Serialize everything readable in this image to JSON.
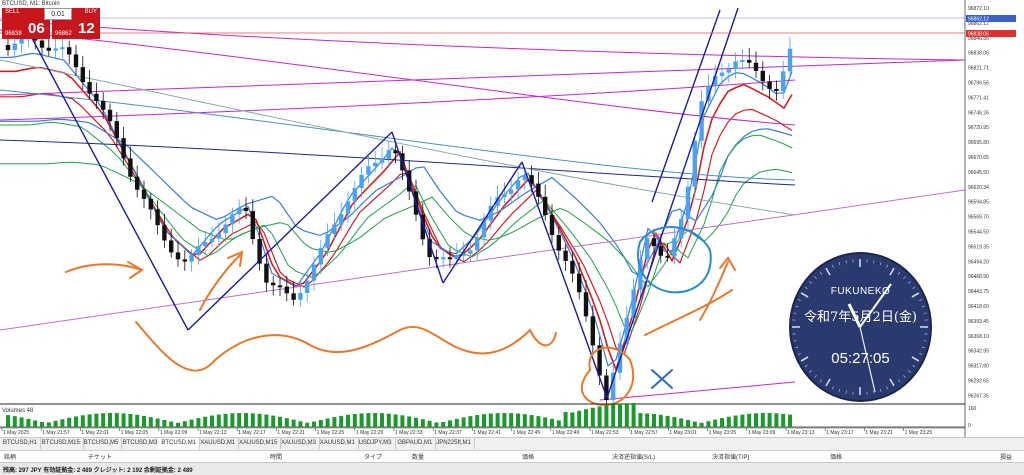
{
  "chart": {
    "title": "BTCUSD, M1: Bitcoin",
    "volume_label": "Volumes 48",
    "price_labels": [
      "96872.10",
      "96862.12",
      "96846.36",
      "96838.06",
      "96821.71",
      "96796.56",
      "96771.41",
      "96746.26",
      "96720.95",
      "96695.80",
      "96670.65",
      "96645.50",
      "96620.34",
      "96594.85",
      "96569.70",
      "96544.50",
      "96519.35",
      "96494.20",
      "96468.90",
      "96443.75",
      "96418.60",
      "96393.45",
      "96368.10",
      "96342.95",
      "96317.80",
      "96292.65",
      "96267.35"
    ],
    "volume_scale": [
      "160",
      "0"
    ],
    "time_labels": [
      "1 May 2025",
      "1 May 21:57",
      "1 May 22:01",
      "1 May 22:05",
      "1 May 22:09",
      "1 May 22:13",
      "1 May 22:17",
      "1 May 22:21",
      "1 May 22:25",
      "1 May 22:29",
      "1 May 22:33",
      "1 May 22:37",
      "1 May 22:41",
      "1 May 22:45",
      "1 May 22:49",
      "1 May 22:53",
      "1 May 22:57",
      "1 May 23:01",
      "1 May 23:05",
      "1 May 23:09",
      "1 May 23:13",
      "1 May 23:17",
      "1 May 23:21",
      "1 May 23:25"
    ],
    "colors": {
      "bull": "#4aa3f0",
      "bear": "#111111",
      "ma_red": "#d41e1e",
      "ma_blue": "#3a7be0",
      "ma_green": "#21a04a",
      "ma_magenta": "#c02ac8",
      "trend": "#1a1aa8",
      "annotation": "#e8782a",
      "volume": "#1a9a2a"
    }
  },
  "trade_panel": {
    "sell_label": "SELL",
    "buy_label": "BUY",
    "lot": "0.01",
    "sell_price": "96838",
    "sell_big": "06",
    "buy_price": "96862",
    "buy_big": "12"
  },
  "clock": {
    "brand": "FUKUNEKO",
    "date": "令和7年5月2日(金)",
    "time": "05:27:05"
  },
  "tabs": [
    "BTCUSD,H1",
    "BTCUSD,M15",
    "BTCUSD,M5",
    "BTCUSD,M3",
    "BTCUSD,M1",
    "XAUUSD,M1",
    "XAUUSD,M15",
    "XAUUSD,M3",
    "XAUUSD,M1",
    "USDJPY,M3",
    "GBPAUD,M1",
    "JPN225ft,M1"
  ],
  "active_tab": 4,
  "terminal": {
    "columns": [
      "銘柄",
      "チケット",
      "時間",
      "タイプ",
      "数量",
      "価格",
      "決済逆指値(S/L)",
      "決済指値(T/P)",
      "価格",
      "損益"
    ],
    "status": "残高: 297 JPY  有効証拠金: 2 489  クレジット: 2 192  余剰証拠金: 2 489"
  }
}
